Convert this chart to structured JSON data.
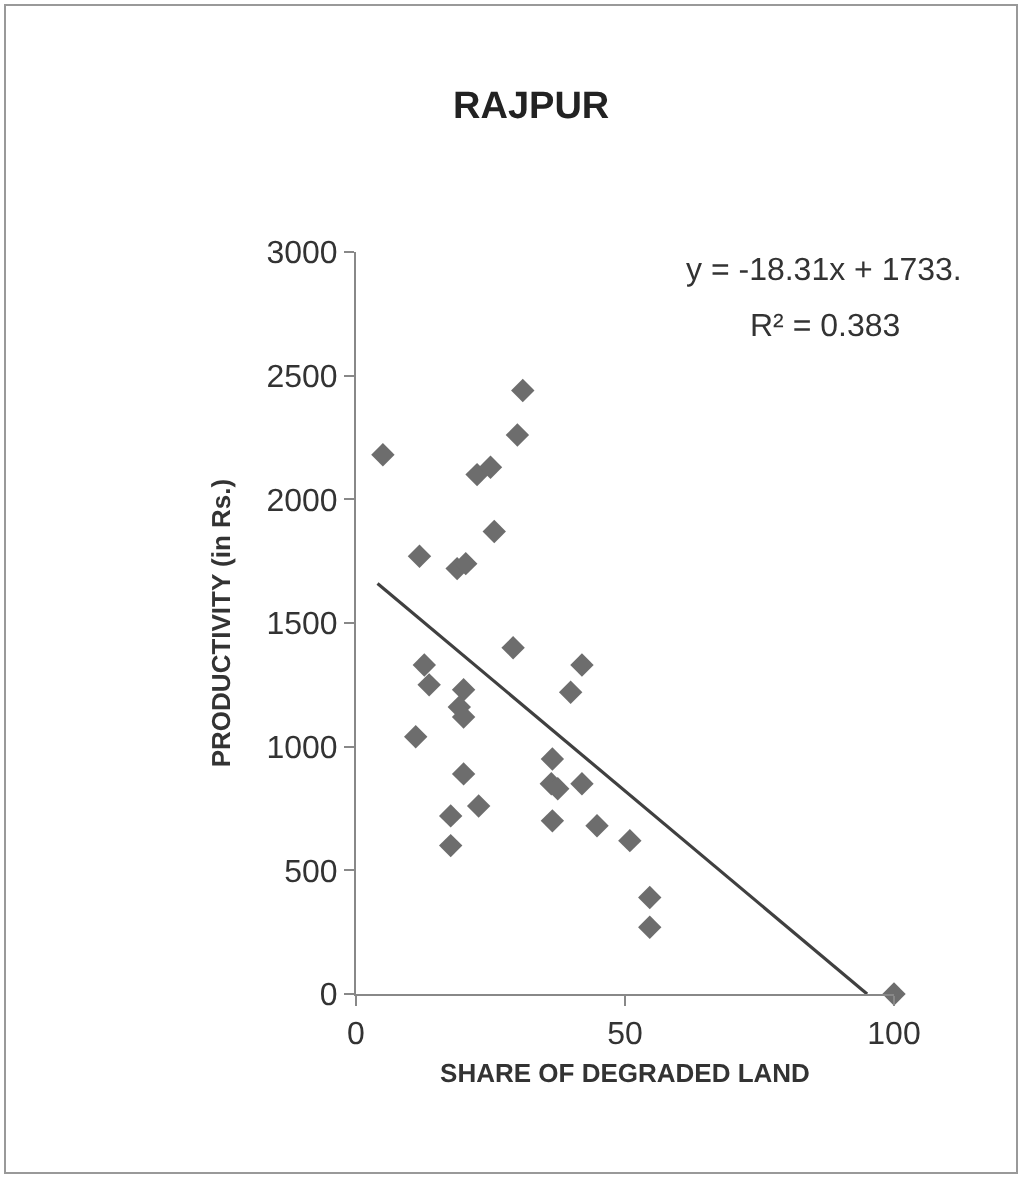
{
  "chart_data": {
    "type": "scatter",
    "title": "RAJPUR",
    "xlabel": "SHARE OF DEGRADED LAND",
    "ylabel": "PRODUCTIVITY (in Rs.)",
    "annotations": [
      "y = -18.31x + 1733.",
      "R² = 0.383"
    ],
    "xlim": [
      0,
      100
    ],
    "xticks": [
      0,
      50,
      100
    ],
    "ylim": [
      0,
      3000
    ],
    "yticks": [
      0,
      500,
      1000,
      1500,
      2000,
      2500,
      3000
    ],
    "grid": false,
    "marker": "diamond",
    "series": [
      {
        "color": "#6d6d6d",
        "x": [
          31,
          30,
          5,
          22.5,
          25,
          25.7,
          11.8,
          18.8,
          20.4,
          29.2,
          12.7,
          42,
          13.6,
          20,
          39.9,
          19.2,
          20,
          11.1,
          36.5,
          20,
          36.3,
          37.5,
          42,
          22.8,
          17.6,
          36.5,
          44.8,
          17.6,
          50.9,
          54.6,
          54.6,
          100
        ],
        "values": [
          2440,
          2260,
          2180,
          2100,
          2130,
          1870,
          1770,
          1720,
          1740,
          1400,
          1330,
          1330,
          1250,
          1230,
          1220,
          1160,
          1120,
          1040,
          950,
          890,
          850,
          830,
          850,
          760,
          720,
          700,
          680,
          600,
          620,
          390,
          270,
          0
        ]
      },
      {
        "type": "line",
        "color": "#404040",
        "marker": "none",
        "line_style": "solid",
        "x": [
          4,
          95
        ],
        "values": [
          1660,
          0
        ]
      }
    ]
  }
}
